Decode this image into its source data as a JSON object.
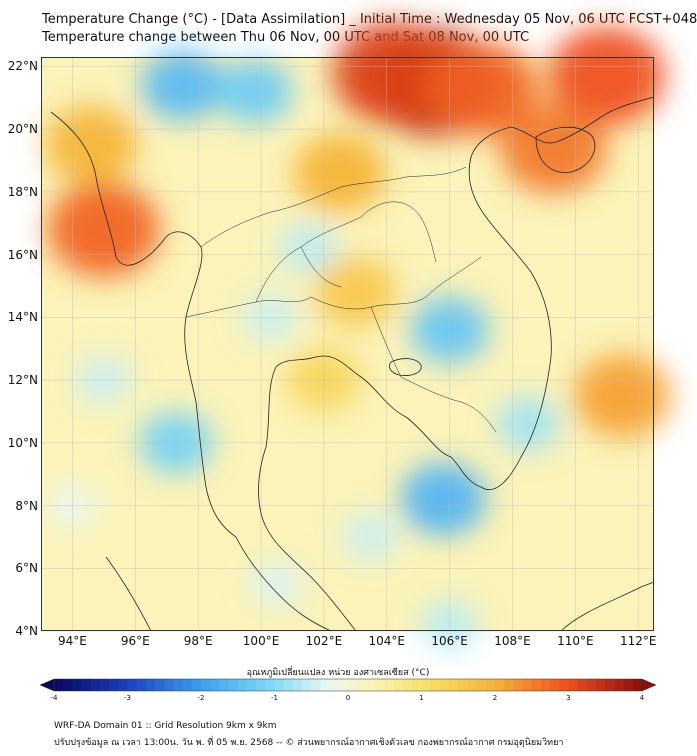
{
  "header": {
    "title_line1": "Temperature Change (°C) - [Data Assimilation] _ Initial Time : Wednesday 05 Nov, 06 UTC FCST+048",
    "title_line2": "Temperature change between Thu 06 Nov, 00 UTC and Sat 08 Nov, 00 UTC"
  },
  "map": {
    "lat_labels": [
      "22°N",
      "20°N",
      "18°N",
      "16°N",
      "14°N",
      "12°N",
      "10°N",
      "8°N",
      "6°N",
      "4°N"
    ],
    "lon_labels": [
      "94°E",
      "96°E",
      "98°E",
      "100°E",
      "102°E",
      "104°E",
      "106°E",
      "108°E",
      "110°E",
      "112°E"
    ],
    "lat_range": [
      4,
      22.3
    ],
    "lon_range": [
      93,
      112.5
    ],
    "hotspots": [
      {
        "lon": 105.5,
        "lat": 21.5,
        "value": 3.5
      },
      {
        "lon": 104.2,
        "lat": 21.8,
        "value": 3.2
      },
      {
        "lon": 107.0,
        "lat": 21.3,
        "value": 2.8
      },
      {
        "lon": 111.0,
        "lat": 21.7,
        "value": 3.0
      },
      {
        "lon": 109.3,
        "lat": 19.4,
        "value": 2.6
      },
      {
        "lon": 95.0,
        "lat": 16.8,
        "value": 2.8
      },
      {
        "lon": 94.6,
        "lat": 19.5,
        "value": 2.0
      },
      {
        "lon": 102.5,
        "lat": 18.6,
        "value": 2.0
      },
      {
        "lon": 111.5,
        "lat": 11.5,
        "value": 2.2
      },
      {
        "lon": 103.0,
        "lat": 14.8,
        "value": 1.6
      },
      {
        "lon": 102.0,
        "lat": 12.0,
        "value": 1.3
      },
      {
        "lon": 97.5,
        "lat": 21.4,
        "value": -1.6
      },
      {
        "lon": 99.8,
        "lat": 21.2,
        "value": -1.3
      },
      {
        "lon": 106.0,
        "lat": 13.6,
        "value": -1.4
      },
      {
        "lon": 105.8,
        "lat": 8.2,
        "value": -1.7
      },
      {
        "lon": 97.3,
        "lat": 10.0,
        "value": -1.2
      },
      {
        "lon": 108.5,
        "lat": 10.6,
        "value": -0.8
      },
      {
        "lon": 95.0,
        "lat": 12.0,
        "value": -0.5
      },
      {
        "lon": 103.5,
        "lat": 7.0,
        "value": -0.5
      },
      {
        "lon": 101.5,
        "lat": 16.2,
        "value": -0.6
      },
      {
        "lon": 100.3,
        "lat": 14.0,
        "value": -0.5
      },
      {
        "lon": 106.0,
        "lat": 4.2,
        "value": -0.6
      },
      {
        "lon": 100.5,
        "lat": 5.5,
        "value": -0.4
      },
      {
        "lon": 94.0,
        "lat": 8.0,
        "value": -0.3
      }
    ]
  },
  "colorbar": {
    "title": "อุณหภูมิเปลี่ยนแปลง หน่วย องศาเซลเซียส (°C)",
    "tick_labels": [
      "-4",
      "-3",
      "-2",
      "-1",
      "0",
      "1",
      "2",
      "3",
      "4"
    ],
    "min": -4,
    "max": 4
  },
  "footer": {
    "line1": "WRF-DA Domain 01 :: Grid Resolution 9km x 9km",
    "line2": "ปรับปรุงข้อมูล ณ เวลา 13:00น. วัน พ. ที่ 05 พ.ย. 2568 -- © ส่วนพยากรณ์อากาศเชิงตัวเลข กองพยากรณ์อากาศ กรมอุตุนิยมวิทยา"
  }
}
